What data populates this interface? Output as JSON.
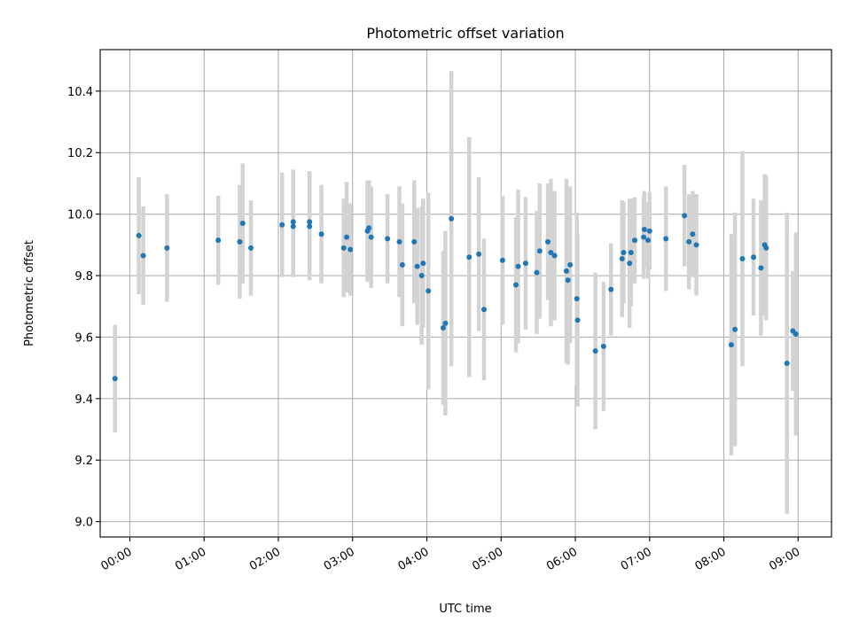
{
  "chart_data": {
    "type": "scatter",
    "title": "Photometric offset variation",
    "xlabel": "UTC time",
    "ylabel": "Photometric offset",
    "x_tick_labels": [
      "00:00",
      "01:00",
      "02:00",
      "03:00",
      "04:00",
      "05:00",
      "06:00",
      "07:00",
      "08:00",
      "09:00"
    ],
    "x_tick_hours": [
      0,
      1,
      2,
      3,
      4,
      5,
      6,
      7,
      8,
      9
    ],
    "y_ticks": [
      9.0,
      9.2,
      9.4,
      9.6,
      9.8,
      10.0,
      10.2,
      10.4
    ],
    "xlim_hours": [
      -0.4,
      9.45
    ],
    "ylim": [
      8.95,
      10.535
    ],
    "grid": true,
    "colors": {
      "point": "#1f77b4",
      "errorbar": "#d3d3d3",
      "grid": "#b0b0b0"
    },
    "x_hours": [
      -0.2,
      0.12,
      0.18,
      0.5,
      1.19,
      1.48,
      1.52,
      1.63,
      2.05,
      2.2,
      2.2,
      2.42,
      2.42,
      2.58,
      2.88,
      2.92,
      2.97,
      3.2,
      3.22,
      3.25,
      3.47,
      3.63,
      3.67,
      3.83,
      3.87,
      3.93,
      3.95,
      4.02,
      4.22,
      4.25,
      4.33,
      4.57,
      4.7,
      4.77,
      5.02,
      5.2,
      5.23,
      5.33,
      5.48,
      5.52,
      5.63,
      5.67,
      5.72,
      5.88,
      5.9,
      5.93,
      6.02,
      6.03,
      6.27,
      6.38,
      6.48,
      6.63,
      6.65,
      6.73,
      6.75,
      6.8,
      6.92,
      6.93,
      6.98,
      7.0,
      7.22,
      7.47,
      7.53,
      7.58,
      7.63,
      8.1,
      8.15,
      8.25,
      8.4,
      8.5,
      8.55,
      8.57,
      8.85,
      8.93,
      8.97
    ],
    "y_values": [
      9.465,
      9.93,
      9.865,
      9.89,
      9.915,
      9.91,
      9.97,
      9.89,
      9.965,
      9.975,
      9.96,
      9.975,
      9.96,
      9.935,
      9.89,
      9.925,
      9.885,
      9.945,
      9.955,
      9.925,
      9.92,
      9.91,
      9.835,
      9.91,
      9.83,
      9.8,
      9.84,
      9.75,
      9.63,
      9.645,
      9.985,
      9.86,
      9.87,
      9.69,
      9.85,
      9.77,
      9.83,
      9.84,
      9.81,
      9.88,
      9.91,
      9.875,
      9.865,
      9.815,
      9.785,
      9.835,
      9.725,
      9.655,
      9.555,
      9.57,
      9.755,
      9.855,
      9.875,
      9.84,
      9.875,
      9.915,
      9.925,
      9.95,
      9.915,
      9.945,
      9.92,
      9.995,
      9.91,
      9.935,
      9.9,
      9.575,
      9.625,
      9.855,
      9.86,
      9.825,
      9.9,
      9.89,
      9.515,
      9.62,
      9.61
    ],
    "y_errors": [
      0.175,
      0.19,
      0.16,
      0.175,
      0.145,
      0.185,
      0.195,
      0.155,
      0.17,
      0.17,
      0.165,
      0.165,
      0.175,
      0.16,
      0.16,
      0.18,
      0.15,
      0.165,
      0.155,
      0.165,
      0.145,
      0.18,
      0.2,
      0.2,
      0.19,
      0.225,
      0.21,
      0.32,
      0.25,
      0.3,
      0.48,
      0.39,
      0.25,
      0.23,
      0.21,
      0.22,
      0.25,
      0.215,
      0.2,
      0.22,
      0.19,
      0.24,
      0.21,
      0.3,
      0.275,
      0.255,
      0.28,
      0.28,
      0.255,
      0.21,
      0.15,
      0.19,
      0.165,
      0.21,
      0.175,
      0.14,
      0.135,
      0.125,
      0.125,
      0.125,
      0.17,
      0.165,
      0.155,
      0.14,
      0.165,
      0.36,
      0.38,
      0.35,
      0.19,
      0.22,
      0.23,
      0.235,
      0.49,
      0.195,
      0.33
    ]
  }
}
